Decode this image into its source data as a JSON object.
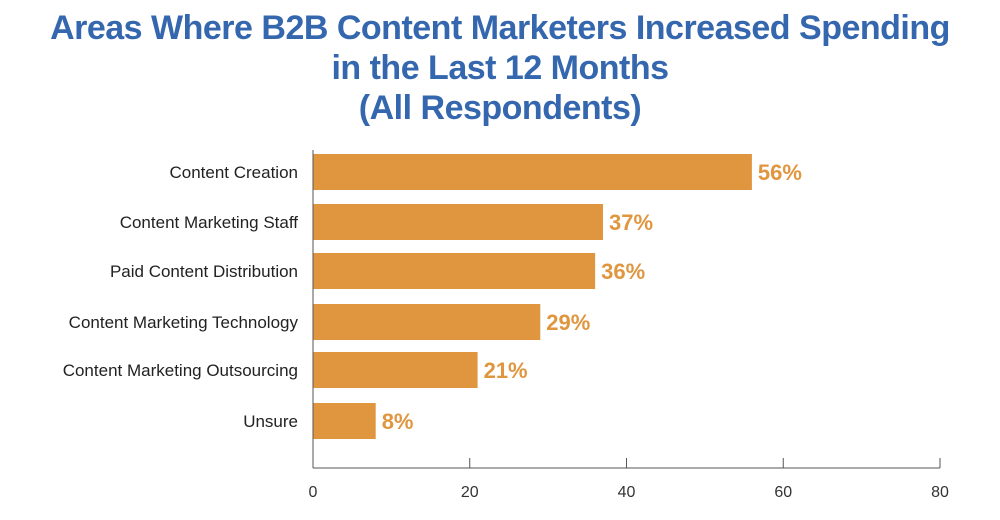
{
  "chart_data": {
    "type": "bar",
    "orientation": "horizontal",
    "title_lines": [
      "Areas Where B2B Content Marketers Increased Spending",
      "in the Last 12 Months",
      "(All Respondents)"
    ],
    "categories": [
      "Content Creation",
      "Content Marketing Staff",
      "Paid Content Distribution",
      "Content Marketing Technology",
      "Content Marketing Outsourcing",
      "Unsure"
    ],
    "values": [
      56,
      37,
      36,
      29,
      21,
      8
    ],
    "value_labels": [
      "56%",
      "37%",
      "36%",
      "29%",
      "21%",
      "8%"
    ],
    "xlim": [
      0,
      80
    ],
    "xticks": [
      0,
      20,
      40,
      60,
      80
    ],
    "xlabel": "",
    "ylabel": "",
    "grid": false,
    "colors": {
      "bar": "#e0963f",
      "title": "#3467ae",
      "axis": "#555555"
    }
  }
}
